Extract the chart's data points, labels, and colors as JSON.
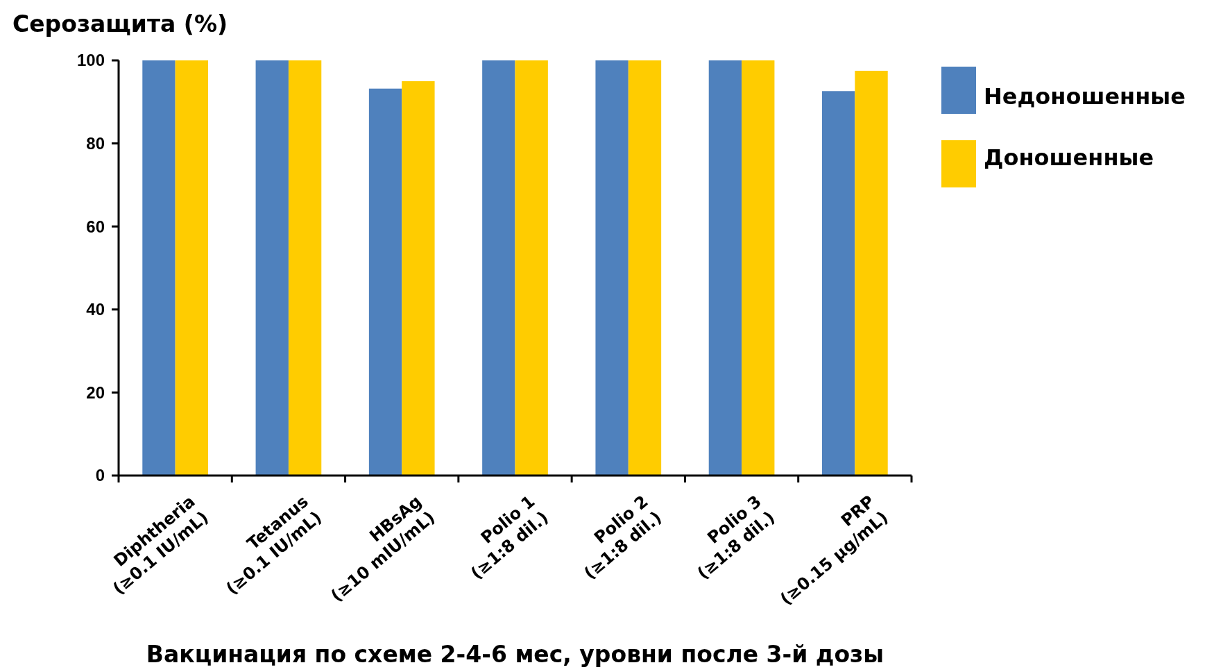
{
  "chart_data": {
    "type": "bar",
    "ylabel": "Серозащита (%)",
    "xlabel": "Вакцинация по схеме 2-4-6 мес, уровни после 3-й дозы",
    "categories": [
      "Diphtheria (≥0.1 IU/mL)",
      "Tetanus (≥0.1 IU/mL)",
      "HBsAg (≥10 mIU/mL)",
      "Polio 1 (≥1:8 dil.)",
      "Polio 2 (≥1:8 dil.)",
      "Polio 3 (≥1:8 dil.)",
      "PRP (≥0.15 μg/mL)"
    ],
    "series": [
      {
        "name": "Недоношенные",
        "color": "#4f81bd",
        "values": [
          100,
          100,
          93.2,
          100,
          100,
          100,
          92.6
        ]
      },
      {
        "name": "Доношенные",
        "color": "#ffcc00",
        "values": [
          100,
          100,
          95,
          100,
          100,
          100,
          97.5
        ]
      }
    ],
    "ylim": [
      0,
      100
    ],
    "yticks": [
      0,
      20,
      40,
      60,
      80,
      100
    ],
    "grid": false,
    "legend": "right"
  }
}
